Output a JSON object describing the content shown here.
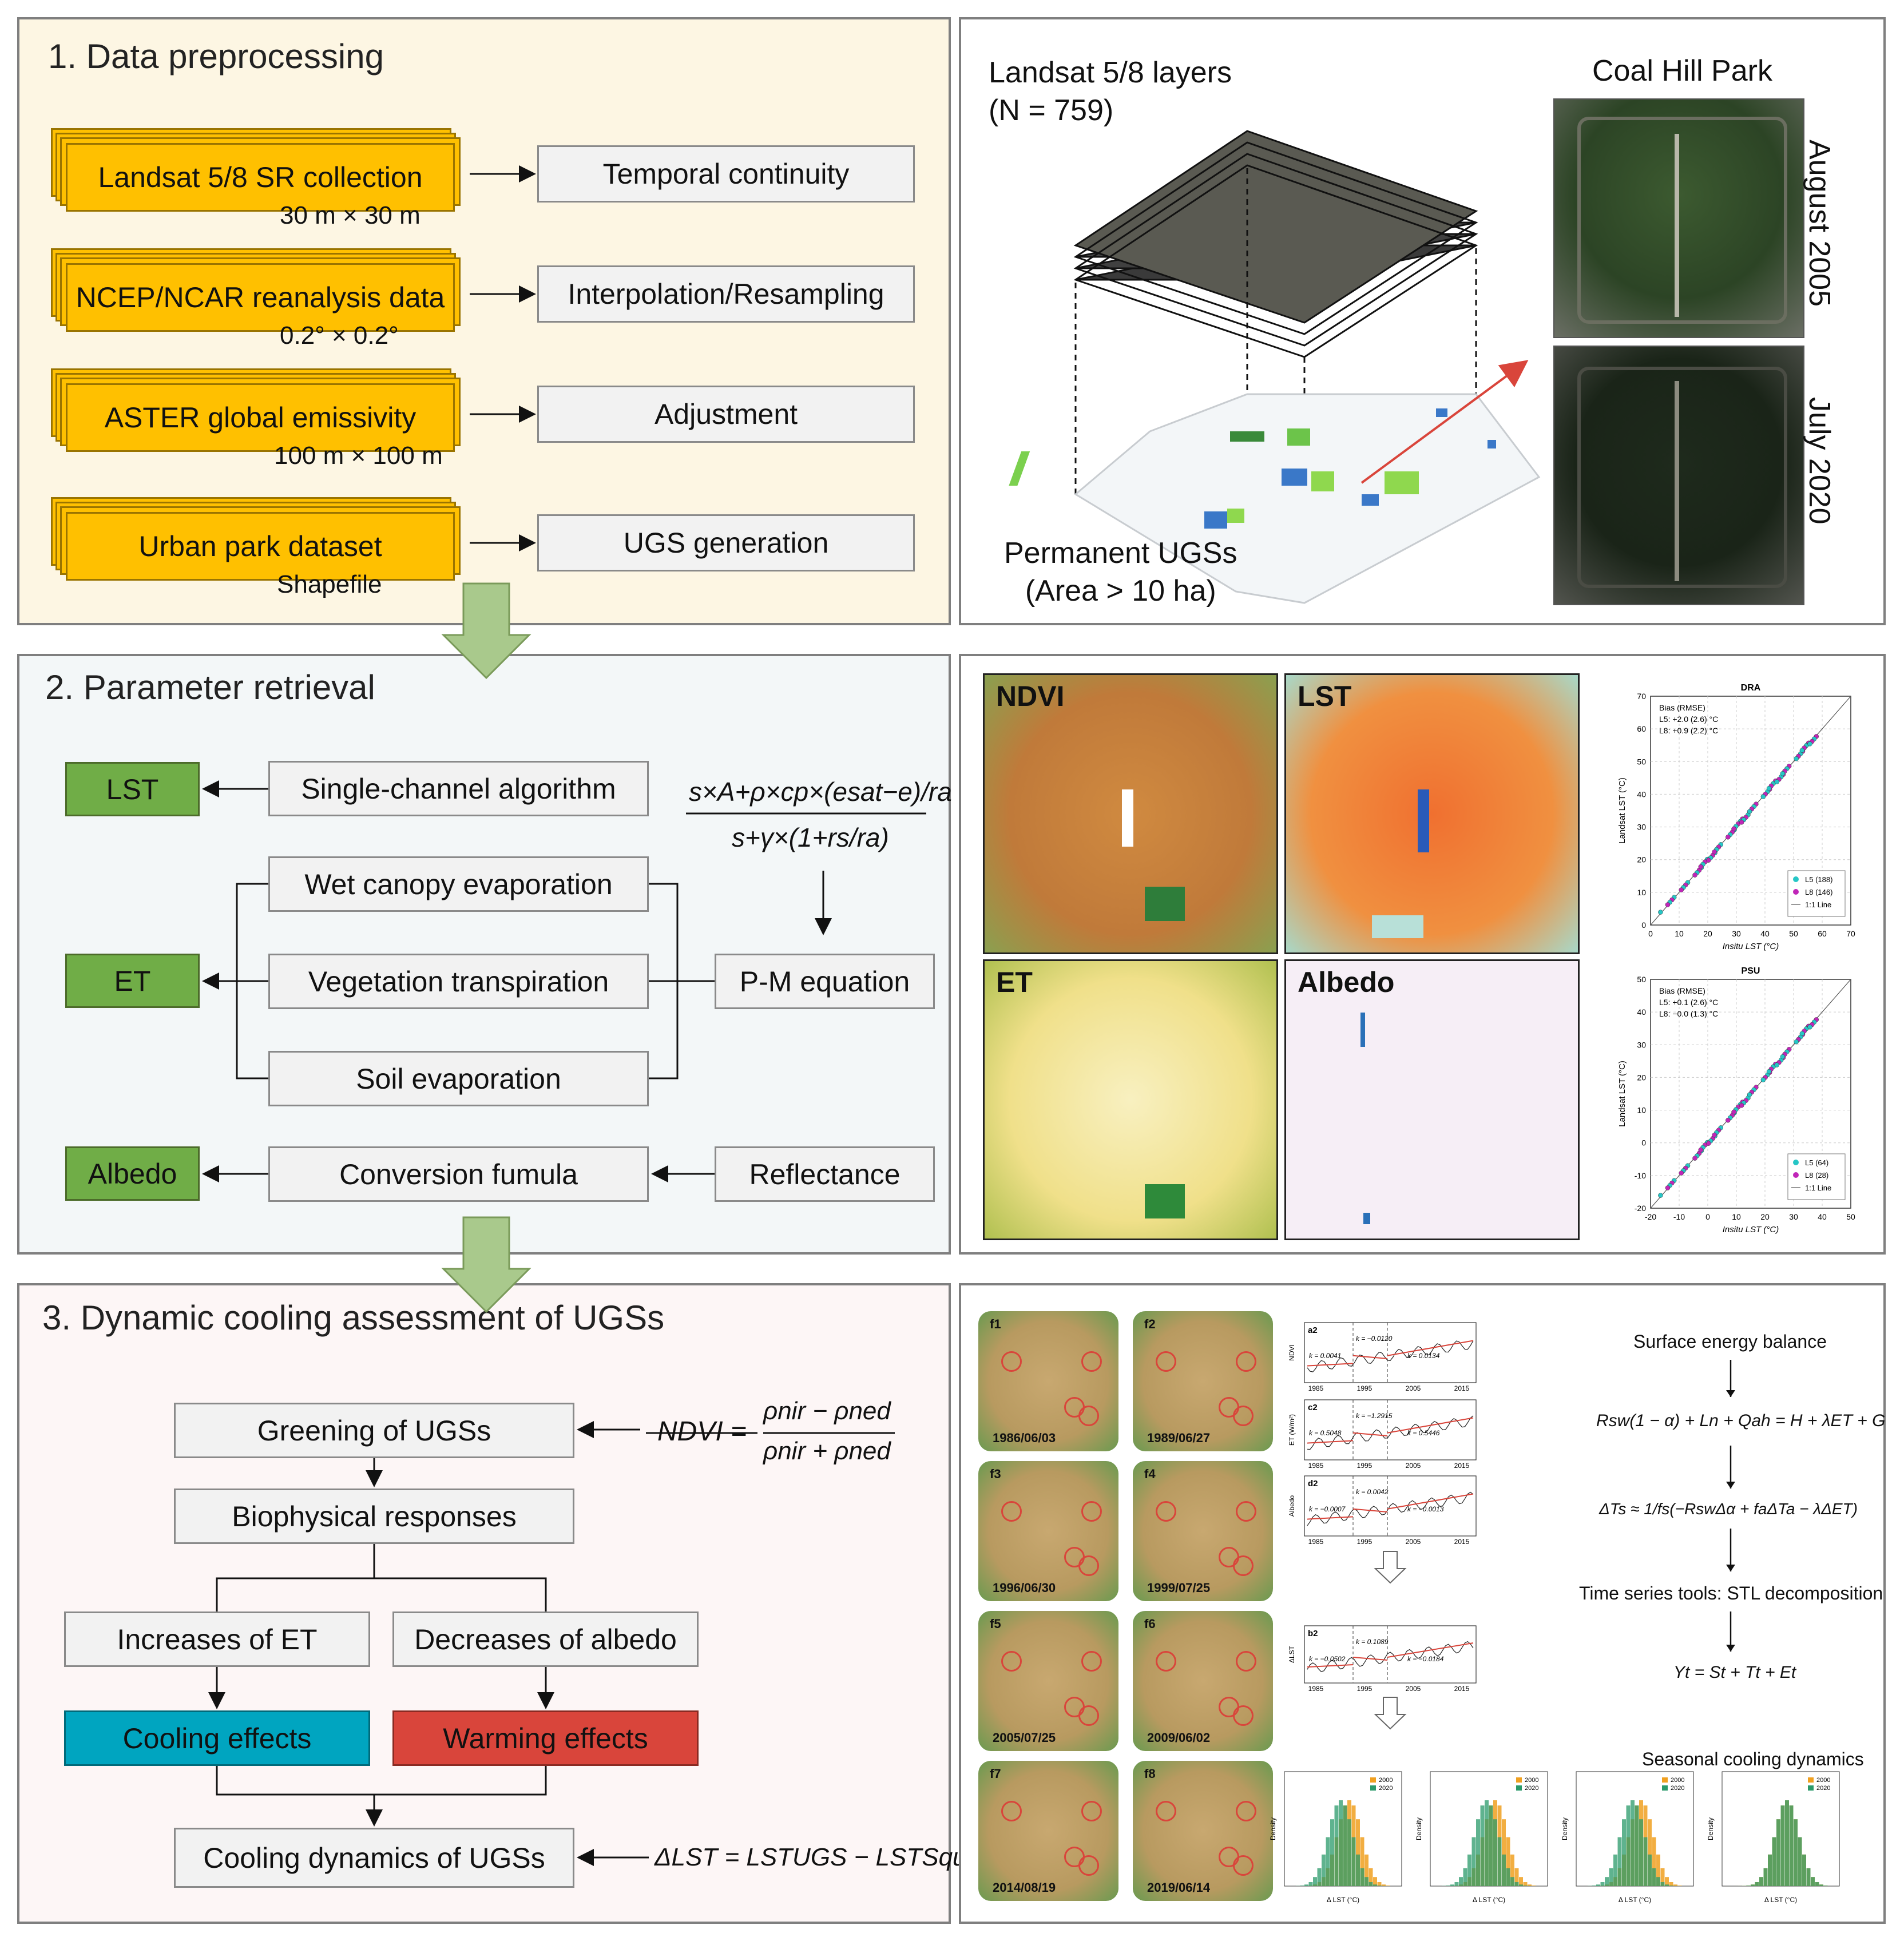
{
  "panel1": {
    "title": "1. Data preprocessing",
    "rows": [
      {
        "source": "Landsat 5/8 SR collection",
        "caption": "30 m × 30 m",
        "process": "Temporal continuity"
      },
      {
        "source": "NCEP/NCAR reanalysis data",
        "caption": "0.2° × 0.2°",
        "process": "Interpolation/Resampling"
      },
      {
        "source": "ASTER global emissivity",
        "caption": "100 m × 100 m",
        "process": "Adjustment"
      },
      {
        "source": "Urban park dataset",
        "caption": "Shapefile",
        "process": "UGS generation"
      }
    ]
  },
  "panel_maps": {
    "layers_label_1": "Landsat 5/8 layers",
    "layers_label_2": "(N = 759)",
    "ugs_label_1": "Permanent UGSs",
    "ugs_label_2": "(Area > 10 ha)",
    "park_name": "Coal Hill Park",
    "date_top": "August 2005",
    "date_bottom": "July 2020"
  },
  "panel2": {
    "title": "2. Parameter retrieval",
    "outputs": [
      "LST",
      "ET",
      "Albedo"
    ],
    "single_channel": "Single-channel algorithm",
    "components": [
      "Wet canopy evaporation",
      "Vegetation transpiration",
      "Soil evaporation"
    ],
    "pm_equation": "P-M equation",
    "conversion": "Conversion fumula",
    "reflectance": "Reflectance",
    "pm_numerator": "s×A+ρ×cp×(esat−e)/ra",
    "pm_denominator": "s+γ×(1+rs/ra)"
  },
  "panel_params": {
    "map_labels": [
      "NDVI",
      "LST",
      "ET",
      "Albedo"
    ],
    "validation": [
      {
        "title": "DRA",
        "bias_header": "Bias (RMSE)",
        "l5": "L5: +2.0 (2.6) °C",
        "l8": "L8: +0.9 (2.2) °C",
        "legend": [
          "L5 (188)",
          "L8 (146)",
          "1:1 Line"
        ],
        "xlabel": "Insitu LST (°C)",
        "ylabel": "Landsat LST (°C)",
        "xticks": [
          "0",
          "10",
          "20",
          "30",
          "40",
          "50",
          "60",
          "70"
        ],
        "yticks": [
          "0",
          "10",
          "20",
          "30",
          "40",
          "50",
          "60",
          "70"
        ]
      },
      {
        "title": "PSU",
        "bias_header": "Bias (RMSE)",
        "l5": "L5: +0.1 (2.6) °C",
        "l8": "L8: −0.0 (1.3) °C",
        "legend": [
          "L5 (64)",
          "L8 (28)",
          "1:1 Line"
        ],
        "xlabel": "Insitu LST (°C)",
        "ylabel": "Landsat LST (°C)",
        "xticks": [
          "-20",
          "-10",
          "0",
          "10",
          "20",
          "30",
          "40",
          "50"
        ],
        "yticks": [
          "-20",
          "-10",
          "0",
          "10",
          "20",
          "30",
          "40",
          "50"
        ]
      }
    ],
    "colors": {
      "l5": "#26c6c6",
      "l8": "#c026b8"
    }
  },
  "panel3": {
    "title": "3. Dynamic cooling assessment of UGSs",
    "greening": "Greening of UGSs",
    "biophysical": "Biophysical responses",
    "increase_et": "Increases of ET",
    "decrease_albedo": "Decreases of albedo",
    "cooling": "Cooling effects",
    "warming": "Warming effects",
    "dynamics": "Cooling dynamics of UGSs",
    "ndvi_label": "NDVI =",
    "ndvi_num": "ρnir − ρned",
    "ndvi_den": "ρnir + ρned",
    "dlst_formula": "ΔLST = LSTUGS − LSTSquare",
    "colors": {
      "cooling": "#00a5c0",
      "warming": "#d9453b"
    }
  },
  "panel_dynamics": {
    "maps": [
      {
        "id": "f1",
        "date": "1986/06/03"
      },
      {
        "id": "f2",
        "date": "1989/06/27"
      },
      {
        "id": "f3",
        "date": "1996/06/30"
      },
      {
        "id": "f4",
        "date": "1999/07/25"
      },
      {
        "id": "f5",
        "date": "2005/07/25"
      },
      {
        "id": "f6",
        "date": "2009/06/02"
      },
      {
        "id": "f7",
        "date": "2014/08/19"
      },
      {
        "id": "f8",
        "date": "2019/06/14"
      }
    ],
    "series": [
      {
        "id": "a2",
        "ylabel": "NDVI",
        "k": [
          "k = 0.0041",
          "k = −0.0120",
          "k = 0.0134"
        ]
      },
      {
        "id": "c2",
        "ylabel": "ET (W/m²)",
        "k": [
          "k = 0.5048",
          "k = −1.2915",
          "k = 0.5446"
        ]
      },
      {
        "id": "d2",
        "ylabel": "Albedo",
        "k": [
          "k = −0.0007",
          "k = 0.0042",
          "k = −0.0013"
        ]
      },
      {
        "id": "b2",
        "ylabel": "ΔLST",
        "k": [
          "k = −0.0502",
          "k = 0.1089",
          "k = −0.0184"
        ]
      }
    ],
    "xyears": [
      "1985",
      "1995",
      "2005",
      "2015"
    ],
    "energy_title": "Surface energy balance",
    "energy_eq": "Rsw(1 − α) + Ln + Qah = H + λET + G",
    "dts_eq": "ΔTs ≈ 1/fs(−RswΔα + faΔTa − λΔET)",
    "stl_title": "Time series tools: STL decomposition",
    "stl_eq": "Yt = St + Tt + Et",
    "seasonal_title": "Seasonal cooling dynamics",
    "hist_xlabel": "Δ LST (°C)",
    "hist_ylabel": "Density",
    "hist_legend": [
      "2000",
      "2020"
    ],
    "hist_colors": {
      "y2000": "#f0a020",
      "y2020": "#2a9a6a"
    }
  }
}
